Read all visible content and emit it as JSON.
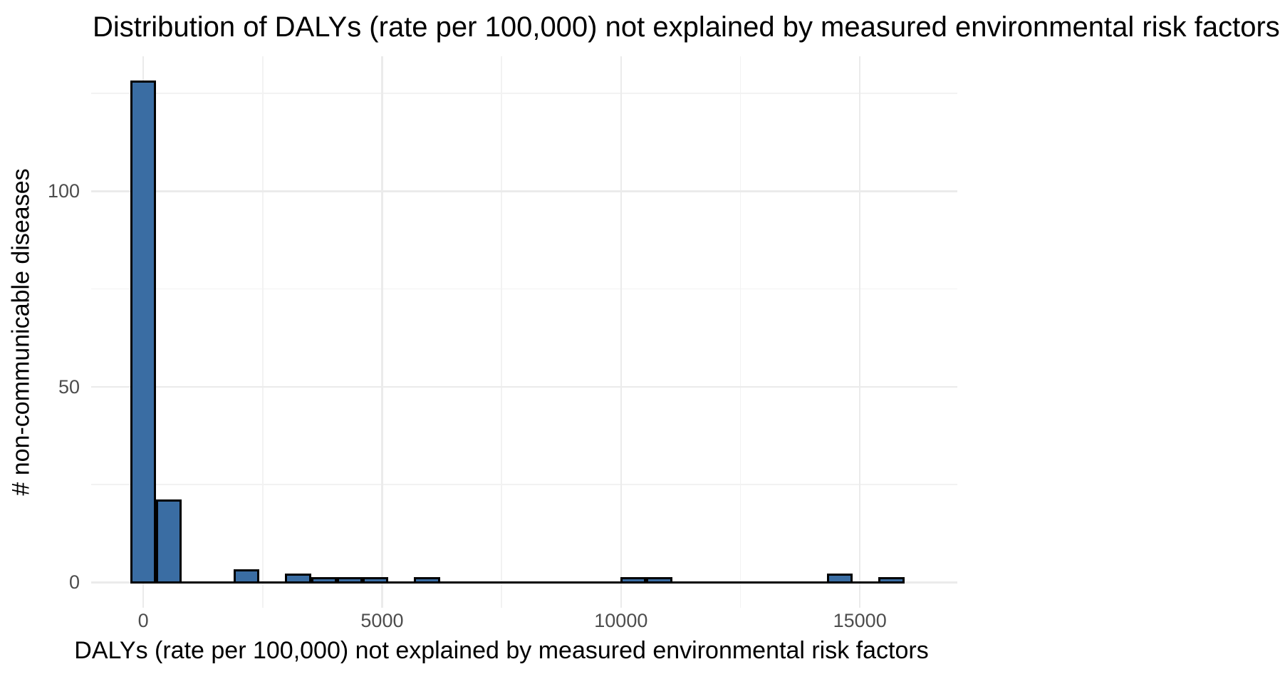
{
  "chart_data": {
    "type": "histogram",
    "title": "Distribution of DALYs (rate per 100,000) not explained by measured environmental risk factors",
    "xlabel": "DALYs (rate per 100,000) not explained by measured environmental risk factors",
    "ylabel": "# non-communicable diseases",
    "x_ticks": [
      0,
      5000,
      10000,
      15000
    ],
    "x_minor_ticks": [
      2500,
      7500,
      12500
    ],
    "y_ticks": [
      0,
      50,
      100
    ],
    "y_minor_ticks": [
      25,
      75,
      125
    ],
    "xlim": [
      -1090,
      17040
    ],
    "ylim": [
      -6.5,
      134.5
    ],
    "binwidth": 540,
    "bins": [
      {
        "center": 0,
        "count": 128
      },
      {
        "center": 540,
        "count": 21
      },
      {
        "center": 2160,
        "count": 3
      },
      {
        "center": 3240,
        "count": 2
      },
      {
        "center": 3780,
        "count": 1
      },
      {
        "center": 4320,
        "count": 1
      },
      {
        "center": 4860,
        "count": 1
      },
      {
        "center": 5940,
        "count": 1
      },
      {
        "center": 10260,
        "count": 1
      },
      {
        "center": 10800,
        "count": 1
      },
      {
        "center": 14580,
        "count": 2
      },
      {
        "center": 15660,
        "count": 1
      }
    ],
    "zero_line_extent": [
      -270,
      15930
    ],
    "grid": true,
    "legend": "none",
    "colors": {
      "bar_fill": "#3A6DA3",
      "bar_stroke": "#000000",
      "grid_major": "#EBEBEB",
      "grid_minor": "#F2F2F2",
      "tick_label": "#4D4D4D",
      "title_text": "#000000",
      "background": "#FFFFFF"
    }
  }
}
